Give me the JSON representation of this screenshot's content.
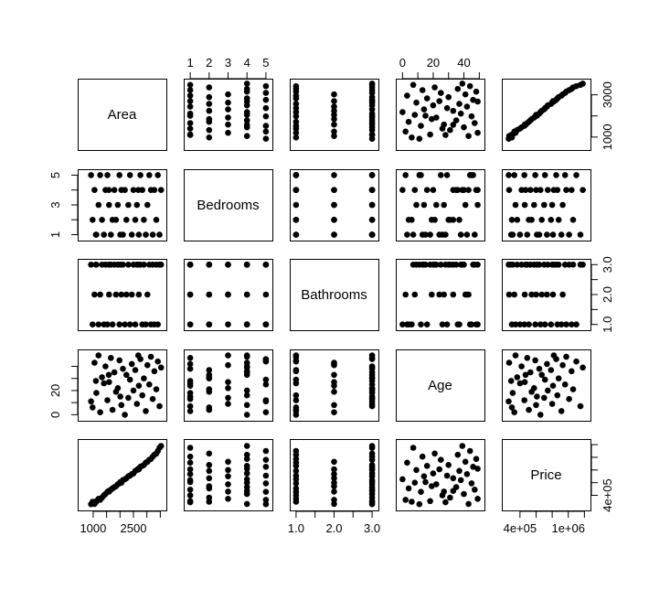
{
  "chart_data": {
    "type": "scatter",
    "title": "",
    "variables": [
      "Area",
      "Bedrooms",
      "Bathrooms",
      "Age",
      "Price"
    ],
    "ranges": {
      "Area": [
        560,
        3590
      ],
      "Bedrooms": [
        0.85,
        5.15
      ],
      "Bathrooms": [
        0.93,
        3.07
      ],
      "Age": [
        -2,
        51
      ],
      "Price": [
        220000,
        1230000
      ]
    },
    "axes": {
      "top": {
        "Bedrooms": [
          "1",
          "2",
          "3",
          "4",
          "5"
        ],
        "Age": [
          "0",
          "20",
          "40"
        ]
      },
      "right": {
        "Area": [
          "1000",
          "3000"
        ],
        "Bathrooms": [
          "1.0",
          "2.0",
          "3.0"
        ],
        "Price": [
          "4e+05"
        ]
      },
      "left": {
        "Bedrooms": [
          "1",
          "3",
          "5"
        ],
        "Age": [
          "0",
          "20"
        ]
      },
      "bottom": {
        "Area": [
          "1000",
          "2500"
        ],
        "Bathrooms": [
          "1.0",
          "2.0",
          "3.0"
        ],
        "Price": [
          "4e+05",
          "1e+06"
        ]
      }
    },
    "tick_values": {
      "top": {
        "Bedrooms": [
          1,
          2,
          3,
          4,
          5
        ],
        "Age": [
          0,
          10,
          20,
          30,
          40,
          50
        ]
      },
      "right": {
        "Area": [
          1000,
          2000,
          3000
        ],
        "Bathrooms": [
          1.0,
          1.5,
          2.0,
          2.5,
          3.0
        ],
        "Price": [
          400000,
          600000,
          800000,
          1000000,
          1200000
        ]
      },
      "left": {
        "Bedrooms": [
          1,
          2,
          3,
          4,
          5
        ],
        "Age": [
          0,
          10,
          20,
          30,
          40
        ]
      },
      "bottom": {
        "Area": [
          1000,
          1500,
          2000,
          2500,
          3000,
          3500
        ],
        "Bathrooms": [
          1.0,
          1.5,
          2.0,
          2.5,
          3.0
        ],
        "Price": [
          400000,
          600000,
          800000,
          1000000,
          1200000
        ]
      }
    },
    "label_values": {
      "top": {
        "Bedrooms": [
          1,
          2,
          3,
          4,
          5
        ],
        "Age": [
          0,
          20,
          40
        ]
      },
      "right": {
        "Area": [
          1000,
          3000
        ],
        "Bathrooms": [
          1.0,
          2.0,
          3.0
        ],
        "Price": [
          400000
        ]
      },
      "left": {
        "Bedrooms": [
          1,
          3,
          5
        ],
        "Age": [
          0,
          20
        ]
      },
      "bottom": {
        "Area": [
          1000,
          2500
        ],
        "Bathrooms": [
          1.0,
          2.0,
          3.0
        ],
        "Price": [
          400000,
          1000000
        ]
      }
    },
    "observations": [
      {
        "Area": 920,
        "Bedrooms": 5,
        "Bathrooms": 3,
        "Age": 11,
        "Price": 260000
      },
      {
        "Area": 980,
        "Bedrooms": 2,
        "Bathrooms": 1,
        "Age": 6,
        "Price": 300000
      },
      {
        "Area": 1050,
        "Bedrooms": 4,
        "Bathrooms": 2,
        "Age": 43,
        "Price": 265000
      },
      {
        "Area": 1120,
        "Bedrooms": 1,
        "Bathrooms": 3,
        "Age": 18,
        "Price": 310000
      },
      {
        "Area": 1200,
        "Bedrooms": 3,
        "Bathrooms": 1,
        "Age": 49,
        "Price": 345000
      },
      {
        "Area": 1260,
        "Bedrooms": 5,
        "Bathrooms": 2,
        "Age": 2,
        "Price": 330000
      },
      {
        "Area": 1330,
        "Bedrooms": 2,
        "Bathrooms": 3,
        "Age": 31,
        "Price": 365000
      },
      {
        "Area": 1400,
        "Bedrooms": 1,
        "Bathrooms": 1,
        "Age": 26,
        "Price": 400000
      },
      {
        "Area": 1460,
        "Bedrooms": 4,
        "Bathrooms": 3,
        "Age": 40,
        "Price": 420000
      },
      {
        "Area": 1530,
        "Bedrooms": 5,
        "Bathrooms": 1,
        "Age": 12,
        "Price": 455000
      },
      {
        "Area": 1590,
        "Bedrooms": 3,
        "Bathrooms": 2,
        "Age": 27,
        "Price": 460000
      },
      {
        "Area": 1660,
        "Bedrooms": 1,
        "Bathrooms": 3,
        "Age": 47,
        "Price": 490000
      },
      {
        "Area": 1720,
        "Bedrooms": 2,
        "Bathrooms": 1,
        "Age": 4,
        "Price": 510000
      },
      {
        "Area": 1790,
        "Bedrooms": 4,
        "Bathrooms": 3,
        "Age": 35,
        "Price": 530000
      },
      {
        "Area": 1850,
        "Bedrooms": 2,
        "Bathrooms": 2,
        "Age": 19,
        "Price": 545000
      },
      {
        "Area": 1920,
        "Bedrooms": 3,
        "Bathrooms": 3,
        "Age": 22,
        "Price": 575000
      },
      {
        "Area": 1980,
        "Bedrooms": 5,
        "Bathrooms": 1,
        "Age": 45,
        "Price": 590000
      },
      {
        "Area": 2050,
        "Bedrooms": 4,
        "Bathrooms": 2,
        "Age": 8,
        "Price": 600000
      },
      {
        "Area": 2110,
        "Bedrooms": 1,
        "Bathrooms": 3,
        "Age": 38,
        "Price": 640000
      },
      {
        "Area": 2180,
        "Bedrooms": 4,
        "Bathrooms": 1,
        "Age": 0,
        "Price": 655000
      },
      {
        "Area": 2240,
        "Bedrooms": 2,
        "Bathrooms": 2,
        "Age": 33,
        "Price": 670000
      },
      {
        "Area": 2310,
        "Bedrooms": 3,
        "Bathrooms": 3,
        "Age": 14,
        "Price": 700000
      },
      {
        "Area": 2370,
        "Bedrooms": 5,
        "Bathrooms": 1,
        "Age": 29,
        "Price": 710000
      },
      {
        "Area": 2440,
        "Bedrooms": 1,
        "Bathrooms": 2,
        "Age": 42,
        "Price": 735000
      },
      {
        "Area": 2500,
        "Bedrooms": 4,
        "Bathrooms": 3,
        "Age": 20,
        "Price": 745000
      },
      {
        "Area": 2570,
        "Bedrooms": 2,
        "Bathrooms": 1,
        "Age": 37,
        "Price": 785000
      },
      {
        "Area": 2630,
        "Bedrooms": 3,
        "Bathrooms": 3,
        "Age": 9,
        "Price": 800000
      },
      {
        "Area": 2700,
        "Bedrooms": 1,
        "Bathrooms": 2,
        "Age": 24,
        "Price": 810000
      },
      {
        "Area": 2760,
        "Bedrooms": 5,
        "Bathrooms": 3,
        "Age": 46,
        "Price": 850000
      },
      {
        "Area": 2830,
        "Bedrooms": 4,
        "Bathrooms": 1,
        "Age": 16,
        "Price": 865000
      },
      {
        "Area": 2890,
        "Bedrooms": 2,
        "Bathrooms": 3,
        "Age": 30,
        "Price": 880000
      },
      {
        "Area": 2960,
        "Bedrooms": 1,
        "Bathrooms": 1,
        "Age": 3,
        "Price": 915000
      },
      {
        "Area": 3020,
        "Bedrooms": 3,
        "Bathrooms": 2,
        "Age": 41,
        "Price": 930000
      },
      {
        "Area": 3090,
        "Bedrooms": 5,
        "Bathrooms": 3,
        "Age": 25,
        "Price": 960000
      },
      {
        "Area": 3150,
        "Bedrooms": 4,
        "Bathrooms": 1,
        "Age": 48,
        "Price": 975000
      },
      {
        "Area": 3220,
        "Bedrooms": 1,
        "Bathrooms": 3,
        "Age": 13,
        "Price": 1010000
      },
      {
        "Area": 3280,
        "Bedrooms": 4,
        "Bathrooms": 1,
        "Age": 36,
        "Price": 1040000
      },
      {
        "Area": 3350,
        "Bedrooms": 2,
        "Bathrooms": 3,
        "Age": 21,
        "Price": 1060000
      },
      {
        "Area": 3410,
        "Bedrooms": 5,
        "Bathrooms": 1,
        "Age": 44,
        "Price": 1100000
      },
      {
        "Area": 3470,
        "Bedrooms": 1,
        "Bathrooms": 3,
        "Age": 7,
        "Price": 1150000
      },
      {
        "Area": 3530,
        "Bedrooms": 4,
        "Bathrooms": 3,
        "Age": 39,
        "Price": 1180000
      },
      {
        "Area": 1100,
        "Bedrooms": 1,
        "Bathrooms": 3,
        "Age": 28,
        "Price": 290000
      },
      {
        "Area": 1580,
        "Bedrooms": 4,
        "Bathrooms": 3,
        "Age": 33,
        "Price": 470000
      },
      {
        "Area": 2010,
        "Bedrooms": 1,
        "Bathrooms": 3,
        "Age": 15,
        "Price": 610000
      },
      {
        "Area": 2680,
        "Bedrooms": 4,
        "Bathrooms": 3,
        "Age": 49,
        "Price": 820000
      }
    ]
  }
}
